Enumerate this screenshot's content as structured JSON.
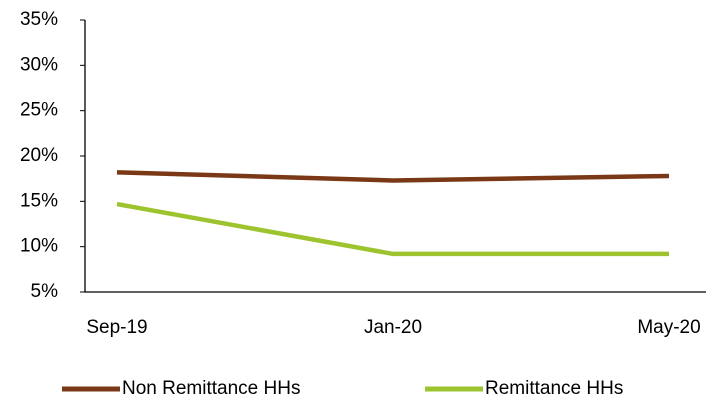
{
  "chart_data": {
    "type": "line",
    "categories": [
      "Sep-19",
      "Jan-20",
      "May-20"
    ],
    "series": [
      {
        "name": "Non Remittance HHs",
        "color": "#7b3816",
        "values": [
          18.2,
          17.3,
          17.8
        ]
      },
      {
        "name": "Remittance HHs",
        "color": "#9dc42e",
        "values": [
          14.7,
          9.2,
          9.2
        ]
      }
    ],
    "ylim": [
      5,
      35
    ],
    "yticks": [
      {
        "value": 5,
        "label": "5%"
      },
      {
        "value": 10,
        "label": "10%"
      },
      {
        "value": 15,
        "label": "15%"
      },
      {
        "value": 20,
        "label": "20%"
      },
      {
        "value": 25,
        "label": "25%"
      },
      {
        "value": 30,
        "label": "30%"
      },
      {
        "value": 35,
        "label": "35%"
      }
    ],
    "grid": false,
    "legend": "bottom"
  }
}
